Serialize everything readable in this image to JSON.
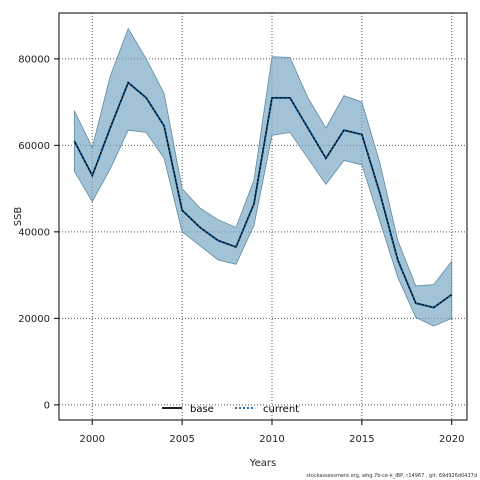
{
  "chart_data": {
    "type": "line",
    "xlabel": "Years",
    "ylabel": "SSB",
    "xlim": [
      1998.15,
      2020.85
    ],
    "ylim": [
      -3500,
      90600
    ],
    "x_ticks": [
      2000,
      2005,
      2010,
      2015,
      2020
    ],
    "y_ticks": [
      0,
      20000,
      40000,
      60000,
      80000
    ],
    "grid": true,
    "legend_position": "bottom-center",
    "x": [
      1999,
      2000,
      2001,
      2002,
      2003,
      2004,
      2005,
      2006,
      2007,
      2008,
      2009,
      2010,
      2011,
      2012,
      2013,
      2014,
      2015,
      2016,
      2017,
      2018,
      2019,
      2020
    ],
    "band": {
      "upper": [
        68000,
        59500,
        76000,
        87000,
        80000,
        72000,
        50000,
        45500,
        42800,
        41000,
        52000,
        80500,
        80300,
        71000,
        64000,
        71500,
        70000,
        56000,
        38000,
        27500,
        27800,
        33200
      ],
      "lower": [
        54000,
        47000,
        54500,
        63500,
        63000,
        57000,
        40000,
        36800,
        33500,
        32500,
        41500,
        62300,
        63000,
        57000,
        51000,
        56500,
        55500,
        42500,
        29500,
        20200,
        18200,
        20000
      ]
    },
    "series": [
      {
        "name": "base",
        "style": "solid",
        "color": "#000000",
        "values": [
          61000,
          53000,
          64000,
          74500,
          71000,
          64500,
          45000,
          41000,
          38000,
          36500,
          46500,
          71000,
          71000,
          64000,
          57000,
          63500,
          62500,
          49000,
          33500,
          23500,
          22500,
          25500
        ]
      },
      {
        "name": "current",
        "style": "dotted",
        "color": "#00599d",
        "values": [
          61000,
          53000,
          64000,
          74500,
          71000,
          64500,
          45000,
          41000,
          38000,
          36500,
          46500,
          71000,
          71000,
          64000,
          57000,
          63500,
          62500,
          49000,
          33500,
          23500,
          22500,
          25500
        ]
      }
    ]
  },
  "colors": {
    "band_fill": "#7aa9c4",
    "band_stroke": "#5f8aa3",
    "grid": "#555555",
    "axis": "#000000"
  },
  "footer_text": "stockassessment.org, whg.7b-ce-k_IBP, r14967 , git: 69d926d0437d"
}
